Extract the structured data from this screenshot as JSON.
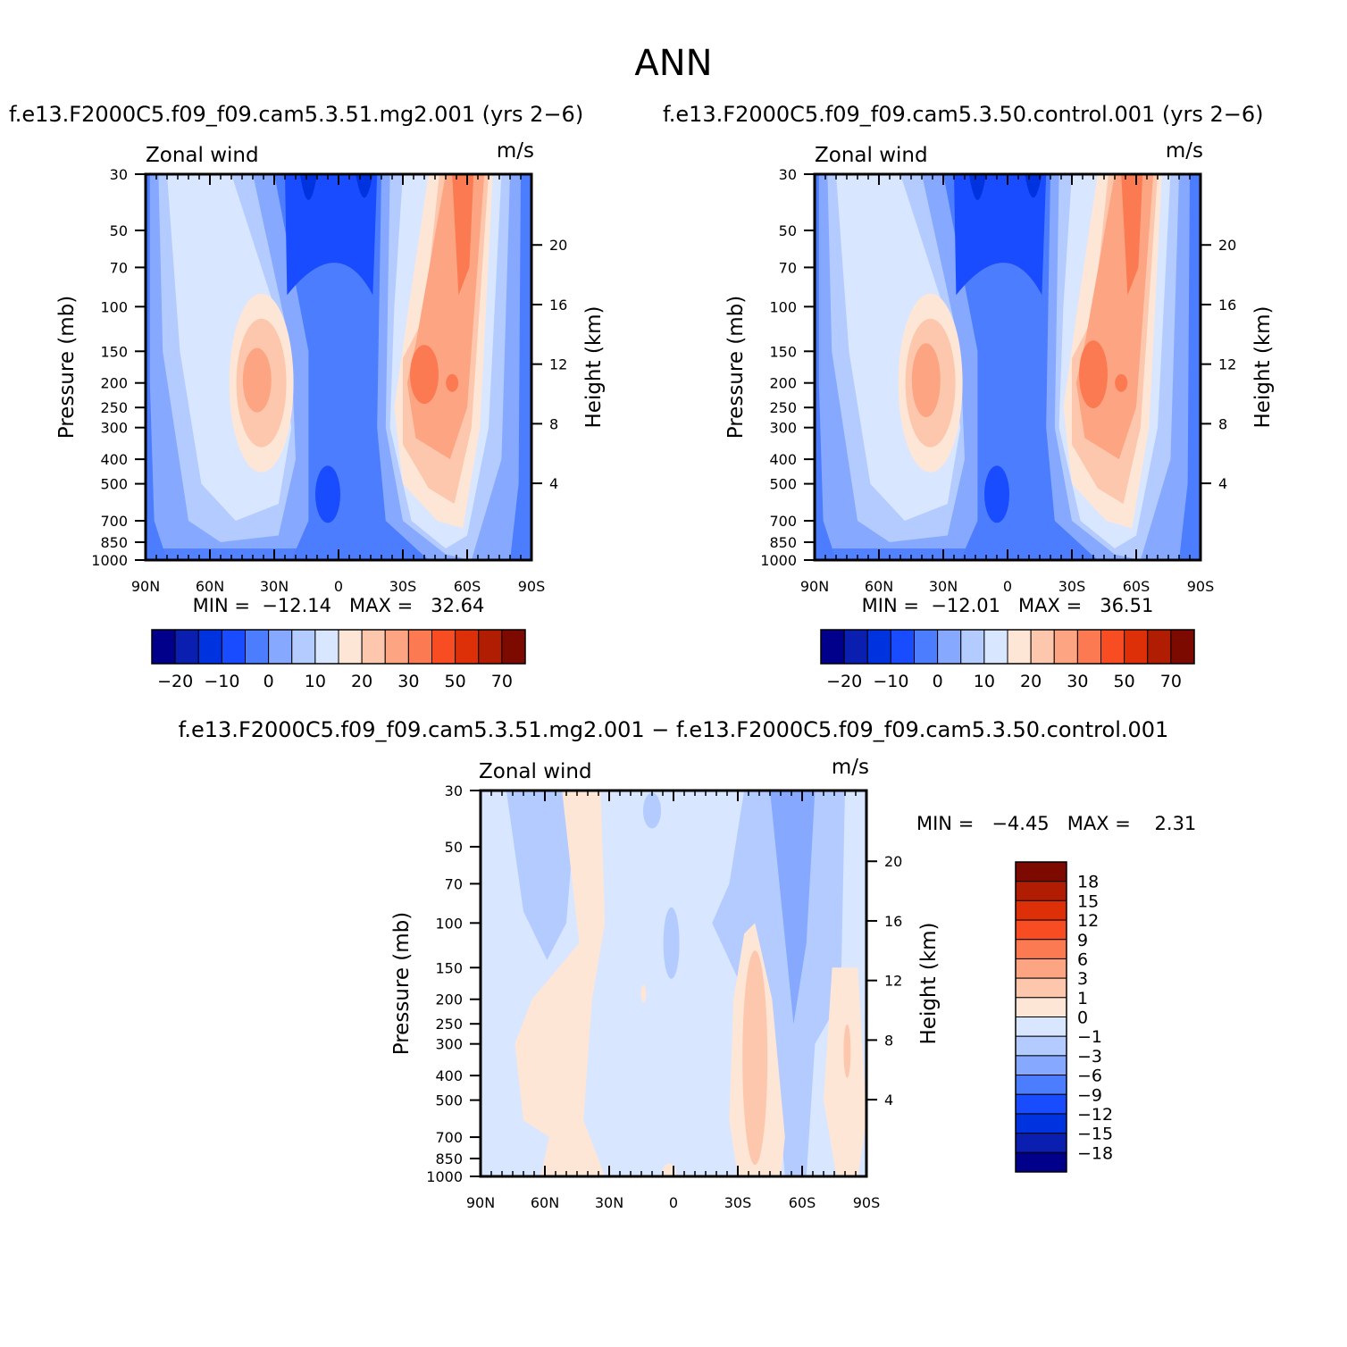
{
  "figure": {
    "title": "ANN",
    "diff_title": "f.e13.F2000C5.f09_f09.cam5.3.51.mg2.001 − f.e13.F2000C5.f09_f09.cam5.3.50.control.001"
  },
  "panels": [
    {
      "title": "f.e13.F2000C5.f09_f09.cam5.3.51.mg2.001 (yrs 2−6)",
      "left_label": "Zonal wind",
      "right_label": "m/s",
      "ylabel": "Pressure (mb)",
      "y2label": "Height (km)",
      "stats": "MIN =  −12.14   MAX =   32.64"
    },
    {
      "title": "f.e13.F2000C5.f09_f09.cam5.3.50.control.001 (yrs 2−6)",
      "left_label": "Zonal wind",
      "right_label": "m/s",
      "ylabel": "Pressure (mb)",
      "y2label": "Height (km)",
      "stats": "MIN =  −12.01   MAX =   36.51"
    },
    {
      "title": "",
      "left_label": "Zonal wind",
      "right_label": "m/s",
      "ylabel": "Pressure (mb)",
      "y2label": "Height (km)",
      "stats": "MIN =   −4.45   MAX =    2.31"
    }
  ],
  "chart_data": [
    {
      "type": "heatmap",
      "title": "f.e13.F2000C5.f09_f09.cam5.3.51.mg2.001 (yrs 2−6)",
      "variable": "Zonal wind",
      "units": "m/s",
      "ylabel": "Pressure (mb)",
      "y2label": "Height (km)",
      "x_ticks": [
        "90N",
        "60N",
        "30N",
        "0",
        "30S",
        "60S",
        "90S"
      ],
      "y_ticks": [
        30,
        50,
        70,
        100,
        150,
        200,
        250,
        300,
        400,
        500,
        700,
        850,
        1000
      ],
      "y2_ticks": [
        4,
        8,
        12,
        16,
        20
      ],
      "ylim": [
        1000,
        30
      ],
      "min": -12.14,
      "max": 32.64,
      "colorbar_labels": [
        "−20",
        "−10",
        "0",
        "10",
        "20",
        "30",
        "50",
        "70"
      ],
      "colors": [
        "#00008a",
        "#0a1fb0",
        "#0033e0",
        "#1a4cff",
        "#4d7dff",
        "#86a9ff",
        "#b3cbff",
        "#d8e6ff",
        "#fee6d6",
        "#fdc7ad",
        "#fda583",
        "#fb7a51",
        "#f84c22",
        "#dd3008",
        "#b11d02",
        "#7d0a00"
      ],
      "features": [
        {
          "type": "jet",
          "lat": -43,
          "level": 200,
          "peak": 32.64
        },
        {
          "type": "jet",
          "lat": 36,
          "level": 180,
          "peak": 22
        },
        {
          "type": "easterly",
          "lat": 0,
          "level": 30,
          "peak": -12.14
        }
      ]
    },
    {
      "type": "heatmap",
      "title": "f.e13.F2000C5.f09_f09.cam5.3.50.control.001 (yrs 2−6)",
      "variable": "Zonal wind",
      "units": "m/s",
      "ylabel": "Pressure (mb)",
      "y2label": "Height (km)",
      "x_ticks": [
        "90N",
        "60N",
        "30N",
        "0",
        "30S",
        "60S",
        "90S"
      ],
      "y_ticks": [
        30,
        50,
        70,
        100,
        150,
        200,
        250,
        300,
        400,
        500,
        700,
        850,
        1000
      ],
      "y2_ticks": [
        4,
        8,
        12,
        16,
        20
      ],
      "ylim": [
        1000,
        30
      ],
      "min": -12.01,
      "max": 36.51,
      "colorbar_labels": [
        "−20",
        "−10",
        "0",
        "10",
        "20",
        "30",
        "50",
        "70"
      ],
      "colors": [
        "#00008a",
        "#0a1fb0",
        "#0033e0",
        "#1a4cff",
        "#4d7dff",
        "#86a9ff",
        "#b3cbff",
        "#d8e6ff",
        "#fee6d6",
        "#fdc7ad",
        "#fda583",
        "#fb7a51",
        "#f84c22",
        "#dd3008",
        "#b11d02",
        "#7d0a00"
      ],
      "features": [
        {
          "type": "jet",
          "lat": -43,
          "level": 200,
          "peak": 36.51
        },
        {
          "type": "jet",
          "lat": 36,
          "level": 180,
          "peak": 24
        },
        {
          "type": "easterly",
          "lat": 0,
          "level": 30,
          "peak": -12.01
        }
      ]
    },
    {
      "type": "heatmap",
      "title": "f.e13.F2000C5.f09_f09.cam5.3.51.mg2.001 − f.e13.F2000C5.f09_f09.cam5.3.50.control.001",
      "variable": "Zonal wind",
      "units": "m/s",
      "ylabel": "Pressure (mb)",
      "y2label": "Height (km)",
      "x_ticks": [
        "90N",
        "60N",
        "30N",
        "0",
        "30S",
        "60S",
        "90S"
      ],
      "y_ticks": [
        30,
        50,
        70,
        100,
        150,
        200,
        250,
        300,
        400,
        500,
        700,
        850,
        1000
      ],
      "y2_ticks": [
        4,
        8,
        12,
        16,
        20
      ],
      "ylim": [
        1000,
        30
      ],
      "min": -4.45,
      "max": 2.31,
      "colorbar_labels": [
        "18",
        "15",
        "12",
        "9",
        "6",
        "3",
        "1",
        "0",
        "−1",
        "−3",
        "−6",
        "−9",
        "−12",
        "−15",
        "−18"
      ],
      "colors": [
        "#7d0a00",
        "#b11d02",
        "#dd3008",
        "#f84c22",
        "#fb7a51",
        "#fda583",
        "#fdc7ad",
        "#fee6d6",
        "#d8e6ff",
        "#b3cbff",
        "#86a9ff",
        "#4d7dff",
        "#1a4cff",
        "#0033e0",
        "#0a1fb0",
        "#00008a"
      ]
    }
  ]
}
